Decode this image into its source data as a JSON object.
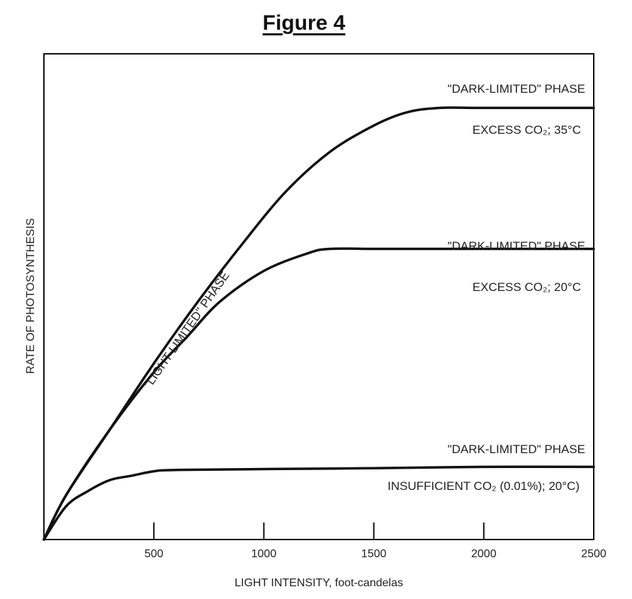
{
  "figure": {
    "title": "Figure 4"
  },
  "chart_data": {
    "type": "line",
    "title": "",
    "xlabel": "LIGHT INTENSITY, foot-candelas",
    "ylabel": "RATE OF PHOTOSYNTHESIS",
    "xlim": [
      0,
      2500
    ],
    "ylim": [
      0,
      100
    ],
    "xticks": [
      500,
      1000,
      1500,
      2000,
      2500
    ],
    "tick_labels": [
      "500",
      "1000",
      "1500",
      "2000",
      "2500"
    ],
    "grid": false,
    "line_color": "#111111",
    "series": [
      {
        "label_top": "\"DARK-LIMITED\" PHASE",
        "label_bottom": "EXCESS CO₂; 35°C",
        "x": [
          0,
          100,
          300,
          500,
          700,
          900,
          1100,
          1300,
          1500,
          1650,
          1800,
          2000,
          2500
        ],
        "y": [
          0,
          10,
          25,
          40,
          54,
          67,
          79,
          88,
          94,
          97,
          98,
          98,
          98
        ]
      },
      {
        "label_top": "\"DARK-LIMITED\" PHASE",
        "label_bottom": "EXCESS CO₂; 20°C",
        "x": [
          0,
          100,
          300,
          500,
          650,
          800,
          1000,
          1200,
          1300,
          1500,
          2000,
          2500
        ],
        "y": [
          0,
          10,
          25,
          38,
          46,
          54,
          61,
          65,
          66,
          66,
          66,
          66
        ]
      },
      {
        "label_top": "\"DARK-LIMITED\" PHASE",
        "label_bottom": "INSUFFICIENT CO₂ (0.01%); 20°C)",
        "x": [
          0,
          100,
          200,
          300,
          400,
          500,
          600,
          1000,
          1500,
          2000,
          2500
        ],
        "y": [
          0,
          7.5,
          11,
          13.5,
          14.5,
          15.5,
          15.8,
          16,
          16.2,
          16.5,
          16.5
        ]
      }
    ],
    "annotations": [
      {
        "text": "\"LIGHT-LIMITED\" PHASE"
      }
    ]
  }
}
